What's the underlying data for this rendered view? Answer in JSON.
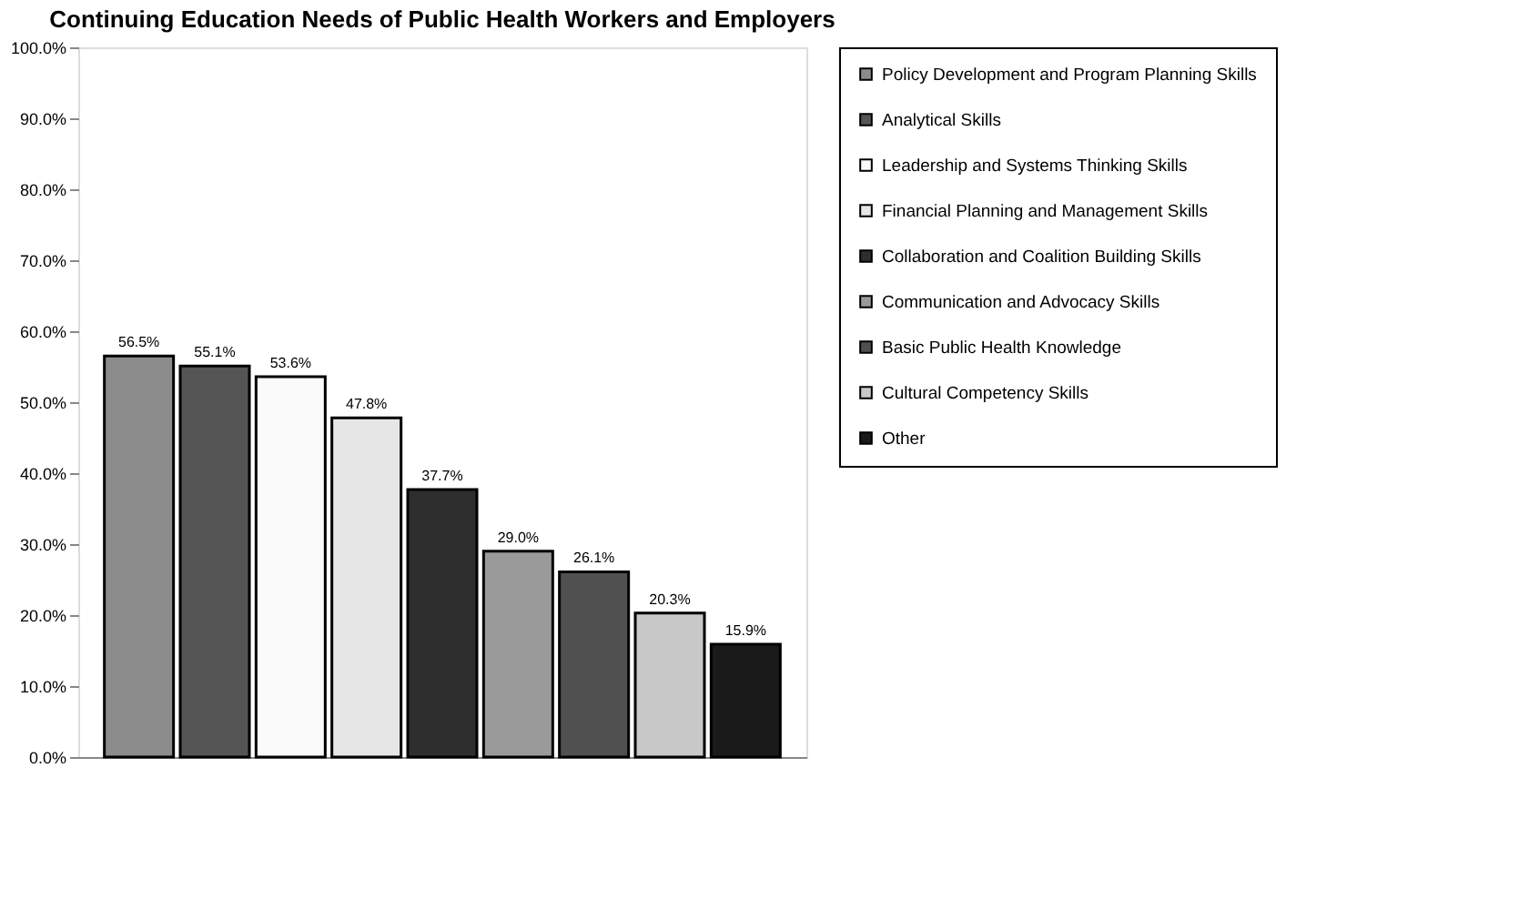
{
  "chart_data": {
    "type": "bar",
    "title": "Continuing Education Needs of Public Health Workers and Employers",
    "categories": [
      null,
      null,
      null,
      null,
      null,
      null,
      null,
      null,
      null
    ],
    "series": [
      {
        "name": "Policy Development and Program Planning Skills",
        "color": "#8c8c8c",
        "values": [
          56.5,
          null,
          null,
          null,
          null,
          null,
          null,
          null,
          null
        ],
        "value_labels": [
          "56.5%",
          null,
          null,
          null,
          null,
          null,
          null,
          null,
          null
        ]
      },
      {
        "name": "Analytical Skills",
        "color": "#555555",
        "values": [
          null,
          55.1,
          null,
          null,
          null,
          null,
          null,
          null,
          null
        ],
        "value_labels": [
          null,
          "55.1%",
          null,
          null,
          null,
          null,
          null,
          null,
          null
        ]
      },
      {
        "name": "Leadership and Systems Thinking Skills",
        "color": "#fafafa",
        "values": [
          null,
          null,
          53.6,
          null,
          null,
          null,
          null,
          null,
          null
        ],
        "value_labels": [
          null,
          null,
          "53.6%",
          null,
          null,
          null,
          null,
          null,
          null
        ]
      },
      {
        "name": "Financial Planning and Management Skills",
        "color": "#e6e6e6",
        "values": [
          null,
          null,
          null,
          47.8,
          null,
          null,
          null,
          null,
          null
        ],
        "value_labels": [
          null,
          null,
          null,
          "47.8%",
          null,
          null,
          null,
          null,
          null
        ]
      },
      {
        "name": "Collaboration and Coalition Building Skills",
        "color": "#2e2e2e",
        "values": [
          null,
          null,
          null,
          null,
          37.7,
          null,
          null,
          null,
          null
        ],
        "value_labels": [
          null,
          null,
          null,
          null,
          "37.7%",
          null,
          null,
          null,
          null
        ]
      },
      {
        "name": "Communication and Advocacy Skills",
        "color": "#9a9a9a",
        "values": [
          null,
          null,
          null,
          null,
          null,
          29.0,
          null,
          null,
          null
        ],
        "value_labels": [
          null,
          null,
          null,
          null,
          null,
          "29.0%",
          null,
          null,
          null
        ]
      },
      {
        "name": "Basic Public Health Knowledge",
        "color": "#505050",
        "values": [
          null,
          null,
          null,
          null,
          null,
          null,
          26.1,
          null,
          null
        ],
        "value_labels": [
          null,
          null,
          null,
          null,
          null,
          null,
          "26.1%",
          null,
          null
        ]
      },
      {
        "name": "Cultural Competency  Skills",
        "color": "#c8c8c8",
        "values": [
          null,
          null,
          null,
          null,
          null,
          null,
          null,
          20.3,
          null
        ],
        "value_labels": [
          null,
          null,
          null,
          null,
          null,
          null,
          null,
          "20.3%",
          null
        ]
      },
      {
        "name": "Other",
        "color": "#1a1a1a",
        "values": [
          null,
          null,
          null,
          null,
          null,
          null,
          null,
          null,
          15.9
        ],
        "value_labels": [
          null,
          null,
          null,
          null,
          null,
          null,
          null,
          null,
          "15.9%"
        ]
      }
    ],
    "ylim": [
      0,
      100
    ],
    "yticks": [
      {
        "value": 0,
        "label": "0.0%"
      },
      {
        "value": 10,
        "label": "10.0%"
      },
      {
        "value": 20,
        "label": "20.0%"
      },
      {
        "value": 30,
        "label": "30.0%"
      },
      {
        "value": 40,
        "label": "40.0%"
      },
      {
        "value": 50,
        "label": "50.0%"
      },
      {
        "value": 60,
        "label": "60.0%"
      },
      {
        "value": 70,
        "label": "70.0%"
      },
      {
        "value": 80,
        "label": "80.0%"
      },
      {
        "value": 90,
        "label": "90.0%"
      },
      {
        "value": 100,
        "label": "100.0%"
      }
    ],
    "tick_labels": "y",
    "grid": false,
    "legend": "right"
  }
}
